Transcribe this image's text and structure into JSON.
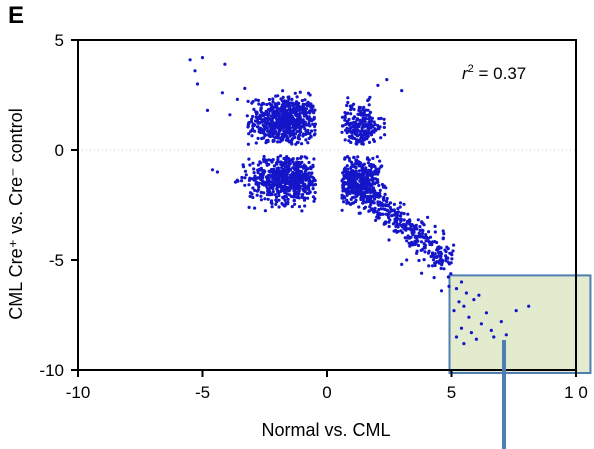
{
  "panel_label": "E",
  "chart_data": {
    "type": "scatter",
    "xlabel": "Normal vs. CML",
    "ylabel": "CML Cre⁺ vs. Cre⁻ control",
    "xlim": [
      -10,
      10
    ],
    "ylim": [
      -10,
      5
    ],
    "xticks": [
      -10,
      -5,
      0,
      5,
      10
    ],
    "xtick_labels": [
      "-10",
      "-5",
      "0",
      "5",
      "1 0"
    ],
    "yticks": [
      -10,
      -5,
      0,
      5
    ],
    "ytick_labels": [
      "-10",
      "-5",
      "0",
      "5"
    ],
    "point_color": "#1515c8",
    "zero_line": "dotted horizontal at y = 0",
    "annotation": {
      "text_prefix": "r",
      "text_sup": "2",
      "text_rest": " = 0.37"
    },
    "highlight_region": {
      "x": [
        5,
        10.5
      ],
      "y": [
        -10,
        -5.7
      ],
      "fill": "#e3ebcf",
      "stroke": "#4f7fb0"
    },
    "callout_line_color": "#4f7fb0",
    "grid": false,
    "clusters": [
      {
        "cx": -1.7,
        "cy": 1.3,
        "sx": 0.7,
        "sy": 0.55,
        "n": 650,
        "xmin": -3.2,
        "xmax": -0.45,
        "ymin": 0.25,
        "ymax": 3.1
      },
      {
        "cx": 1.3,
        "cy": 1.05,
        "sx": 0.45,
        "sy": 0.55,
        "n": 220,
        "xmin": 0.6,
        "xmax": 3.2,
        "ymin": 0.25,
        "ymax": 3.1
      },
      {
        "cx": -1.6,
        "cy": -1.3,
        "sx": 0.75,
        "sy": 0.55,
        "n": 600,
        "xmin": -3.7,
        "xmax": -0.45,
        "ymin": -3.4,
        "ymax": -0.25
      },
      {
        "cx": 1.2,
        "cy": -1.3,
        "sx": 0.5,
        "sy": 0.55,
        "n": 320,
        "xmin": 0.6,
        "xmax": 2.4,
        "ymin": -3.0,
        "ymax": -0.25
      },
      {
        "diagonal": true,
        "x0": 1.0,
        "y0": -1.5,
        "x1": 5.0,
        "y1": -5.2,
        "spread": 0.55,
        "n": 420
      }
    ],
    "points": [
      [
        -5.5,
        4.1
      ],
      [
        -5.0,
        4.2
      ],
      [
        -5.3,
        3.6
      ],
      [
        -4.1,
        3.9
      ],
      [
        -5.2,
        3.0
      ],
      [
        -4.8,
        1.8
      ],
      [
        -3.6,
        2.3
      ],
      [
        -4.2,
        2.6
      ],
      [
        -3.9,
        1.6
      ],
      [
        -3.3,
        2.8
      ],
      [
        -4.4,
        -1.0
      ],
      [
        -4.6,
        -0.9
      ],
      [
        3.0,
        2.7
      ],
      [
        2.4,
        3.2
      ],
      [
        2.8,
        -2.9
      ],
      [
        3.5,
        -3.5
      ],
      [
        3.9,
        -3.4
      ],
      [
        4.2,
        -4.3
      ],
      [
        3.2,
        -5.0
      ],
      [
        3.6,
        -4.7
      ],
      [
        3.0,
        -5.2
      ],
      [
        4.5,
        -4.4
      ],
      [
        4.7,
        -5.4
      ],
      [
        4.1,
        -4.6
      ],
      [
        4.3,
        -5.8
      ],
      [
        4.9,
        -6.2
      ],
      [
        4.6,
        -6.4
      ],
      [
        3.4,
        -4.2
      ],
      [
        3.8,
        -5.6
      ],
      [
        5.2,
        -6.3
      ],
      [
        5.4,
        -6.0
      ],
      [
        5.6,
        -6.5
      ],
      [
        5.3,
        -6.9
      ],
      [
        5.9,
        -6.8
      ],
      [
        6.1,
        -6.6
      ],
      [
        5.5,
        -7.1
      ],
      [
        6.4,
        -7.4
      ],
      [
        7.6,
        -7.3
      ],
      [
        8.1,
        -7.1
      ],
      [
        5.7,
        -7.6
      ],
      [
        6.2,
        -7.9
      ],
      [
        5.4,
        -8.1
      ],
      [
        5.8,
        -8.3
      ],
      [
        6.7,
        -8.5
      ],
      [
        7.2,
        -8.4
      ],
      [
        6.0,
        -8.6
      ],
      [
        5.5,
        -8.8
      ],
      [
        5.1,
        -7.3
      ],
      [
        7.0,
        -7.8
      ],
      [
        5.2,
        -8.5
      ],
      [
        6.6,
        -8.2
      ]
    ]
  }
}
